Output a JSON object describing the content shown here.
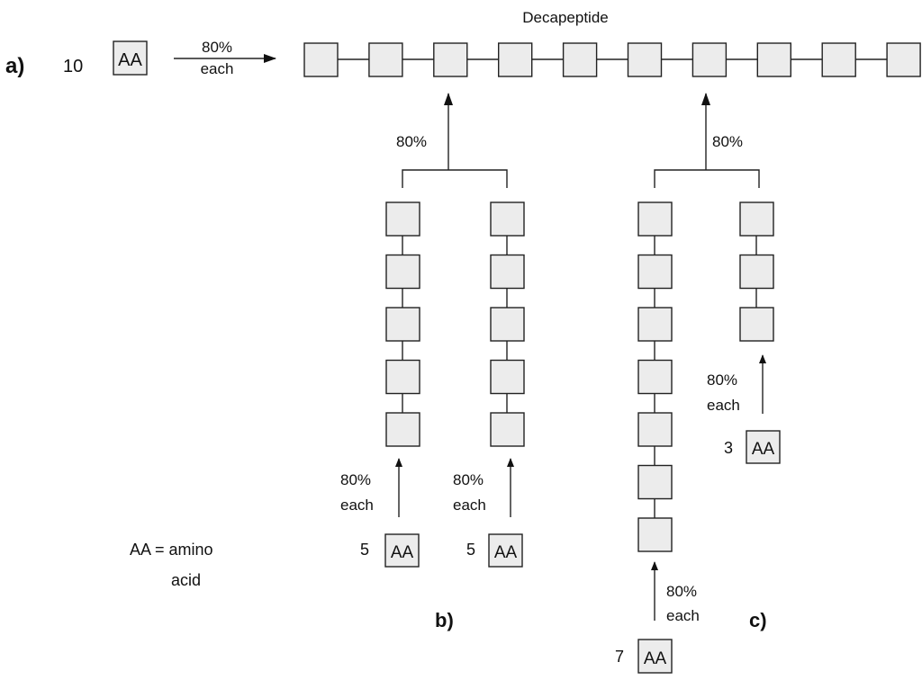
{
  "title": "Decapeptide",
  "panel_a": {
    "label": "a)",
    "count": "10",
    "aa": "AA",
    "yield_top": "80%",
    "yield_bottom": "each"
  },
  "panel_b": {
    "label": "b)",
    "merge_yield": "80%",
    "left": {
      "count": "5",
      "aa": "AA",
      "yield_top": "80%",
      "yield_bottom": "each"
    },
    "right": {
      "count": "5",
      "aa": "AA",
      "yield_top": "80%",
      "yield_bottom": "each"
    }
  },
  "panel_c": {
    "label": "c)",
    "merge_yield": "80%",
    "left": {
      "count": "7",
      "aa": "AA",
      "yield_top": "80%",
      "yield_bottom": "each"
    },
    "right": {
      "count": "3",
      "aa": "AA",
      "yield_top": "80%",
      "yield_bottom": "each"
    }
  },
  "legend": {
    "line1": "AA = amino",
    "line2": "acid"
  }
}
